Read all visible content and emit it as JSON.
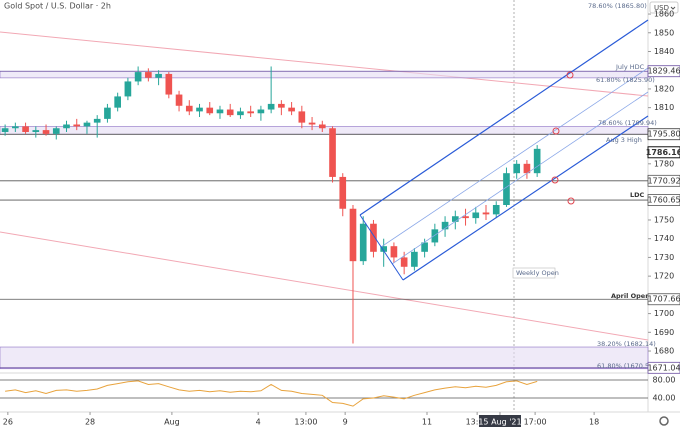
{
  "chart_data": [
    {
      "type": "candlestick",
      "title": "Gold Spot / U.S. Dollar · 2h",
      "currency": "USD",
      "up_color": "#26a69a",
      "down_color": "#ef5350",
      "x": [
        1.5,
        4.5,
        7.5,
        10.5,
        13.5,
        16.5,
        19.5,
        22.5,
        25.5,
        28.5,
        31.5,
        34.5,
        37.5,
        40.5,
        43.5,
        46.5,
        49.5,
        52.5,
        55.5,
        58.5,
        61.5,
        64.5,
        67.5,
        70.5,
        73.5,
        76.5,
        79.5,
        82.5,
        85.5,
        88.5,
        91.5,
        94.5,
        97.5,
        100.5,
        103.5,
        106.5,
        109.5,
        112.5,
        115.5,
        118.5,
        121.5,
        124.5,
        127.5,
        130.5,
        133.5,
        136.5,
        139.5,
        142.5,
        145.5,
        148.5,
        151.5,
        154.5,
        157.5
      ],
      "open": [
        1797,
        1799,
        1800,
        1797,
        1798,
        1796,
        1799,
        1801,
        1800,
        1802,
        1804,
        1810,
        1816,
        1824,
        1829,
        1826,
        1828,
        1817,
        1811,
        1808,
        1810,
        1807,
        1809,
        1806,
        1808,
        1807,
        1809,
        1812,
        1810,
        1808,
        1802,
        1801,
        1799,
        1773,
        1756,
        1728,
        1748,
        1733,
        1736,
        1730,
        1725,
        1733,
        1738,
        1745,
        1749,
        1752,
        1751,
        1754,
        1753,
        1758,
        1775,
        1780,
        1775
      ],
      "high": [
        1801,
        1802,
        1802,
        1800,
        1801,
        1800,
        1803,
        1804,
        1803,
        1806,
        1812,
        1818,
        1826,
        1832,
        1831,
        1830,
        1829,
        1819,
        1814,
        1812,
        1813,
        1811,
        1812,
        1810,
        1811,
        1811,
        1832,
        1814,
        1813,
        1811,
        1805,
        1803,
        1800,
        1775,
        1758,
        1752,
        1750,
        1740,
        1738,
        1733,
        1735,
        1740,
        1748,
        1752,
        1755,
        1756,
        1757,
        1758,
        1760,
        1778,
        1782,
        1782,
        1790
      ],
      "low": [
        1795,
        1797,
        1796,
        1794,
        1795,
        1793,
        1797,
        1798,
        1796,
        1794,
        1802,
        1808,
        1814,
        1822,
        1824,
        1822,
        1815,
        1808,
        1806,
        1805,
        1806,
        1804,
        1805,
        1804,
        1805,
        1803,
        1807,
        1806,
        1806,
        1799,
        1798,
        1797,
        1770,
        1752,
        1684,
        1726,
        1730,
        1725,
        1727,
        1721,
        1723,
        1730,
        1736,
        1741,
        1745,
        1747,
        1748,
        1750,
        1751,
        1757,
        1772,
        1772,
        1773
      ],
      "close": [
        1799,
        1800,
        1797,
        1798,
        1796,
        1799,
        1801,
        1800,
        1802,
        1804,
        1810,
        1816,
        1824,
        1829,
        1826,
        1828,
        1817,
        1811,
        1808,
        1810,
        1807,
        1809,
        1806,
        1808,
        1807,
        1809,
        1812,
        1810,
        1808,
        1802,
        1801,
        1799,
        1773,
        1756,
        1728,
        1748,
        1733,
        1736,
        1730,
        1725,
        1733,
        1738,
        1745,
        1749,
        1752,
        1751,
        1754,
        1753,
        1758,
        1775,
        1780,
        1775,
        1788
      ],
      "xlim": [
        0,
        190
      ],
      "ylim": [
        1668.8,
        1867.5
      ],
      "xticks": [
        {
          "value": 2.3,
          "label": "26"
        },
        {
          "value": 26.4,
          "label": "28"
        },
        {
          "value": 50.4,
          "label": "Aug"
        },
        {
          "value": 75.7,
          "label": "4"
        },
        {
          "value": 89.7,
          "label": "13:00"
        },
        {
          "value": 101.2,
          "label": "9"
        },
        {
          "value": 125.2,
          "label": "11"
        },
        {
          "value": 139.9,
          "label": "13:00"
        },
        {
          "value": 146.6,
          "label": "15 Aug '21"
        },
        {
          "value": 156.9,
          "label": "17:00"
        },
        {
          "value": 174.2,
          "label": "18"
        }
      ],
      "yticks": [
        1860,
        1850,
        1840,
        1820,
        1810,
        1780,
        1750,
        1740,
        1730,
        1720,
        1700,
        1690,
        1680
      ],
      "levels": [
        {
          "value": 1829.46,
          "color": "#6a4fa0"
        },
        {
          "value": 1795.8,
          "label": "1795.80",
          "color": "#333333"
        },
        {
          "value": 1770.92,
          "color": "#555555"
        },
        {
          "value": 1760.65,
          "color": "#555555"
        },
        {
          "value": 1707.66,
          "color": "#555555"
        },
        {
          "value": 1671.04,
          "color": "#6a4fa0"
        }
      ],
      "current_price": 1786.16,
      "zones": [
        [
          1825.9,
          1829.46
        ],
        [
          1795.8,
          1799.94
        ],
        [
          1670.53,
          1682.14
        ]
      ],
      "annotations": [
        "78.60% (1865.80)",
        "July HDC",
        "61.80% (1825.90)",
        "78.60% (1799.94)",
        "Aug 3 High",
        "LDC",
        "Weekly Open",
        "April Open",
        "38.20% (1682.14)",
        "61.80% (1670.53)"
      ]
    },
    {
      "type": "line",
      "color": "#e8a33d",
      "values": [
        55,
        58,
        52,
        56,
        50,
        57,
        58,
        55,
        57,
        60,
        68,
        72,
        76,
        78,
        70,
        72,
        65,
        58,
        55,
        57,
        54,
        56,
        53,
        55,
        54,
        56,
        70,
        57,
        55,
        50,
        48,
        46,
        30,
        28,
        22,
        38,
        40,
        45,
        42,
        38,
        46,
        52,
        58,
        62,
        65,
        63,
        66,
        64,
        68,
        76,
        78,
        70,
        77
      ],
      "ylim": [
        8.9,
        95.6
      ],
      "yticks": [
        {
          "value": 80,
          "label": "80.00"
        },
        {
          "value": 40,
          "label": "40.00"
        }
      ]
    }
  ]
}
